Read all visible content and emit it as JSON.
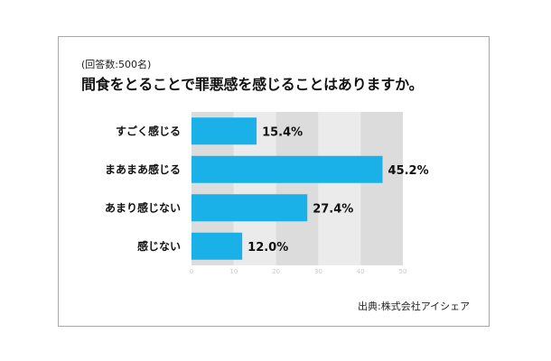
{
  "header": {
    "note": "(回答数:500名)",
    "title": "間食をとることで罪悪感を感じることはありますか。"
  },
  "source": "出典:株式会社アイシェア",
  "colors": {
    "bar": "#1ab0e8",
    "plot_band_dark": "#dcdcdc",
    "plot_band_light": "#ebebeb",
    "tick_text": "#c8c8c8"
  },
  "chart_data": {
    "type": "bar",
    "orientation": "horizontal",
    "categories": [
      "すごく感じる",
      "まあまあ感じる",
      "あまり感じない",
      "感じない"
    ],
    "values": [
      15.4,
      45.2,
      27.4,
      12.0
    ],
    "value_labels": [
      "15.4%",
      "45.2%",
      "27.4%",
      "12.0%"
    ],
    "xlim": [
      0,
      50
    ],
    "xticks": [
      "0",
      "10",
      "20",
      "30",
      "40",
      "50"
    ],
    "unit": "%",
    "grid": true
  }
}
